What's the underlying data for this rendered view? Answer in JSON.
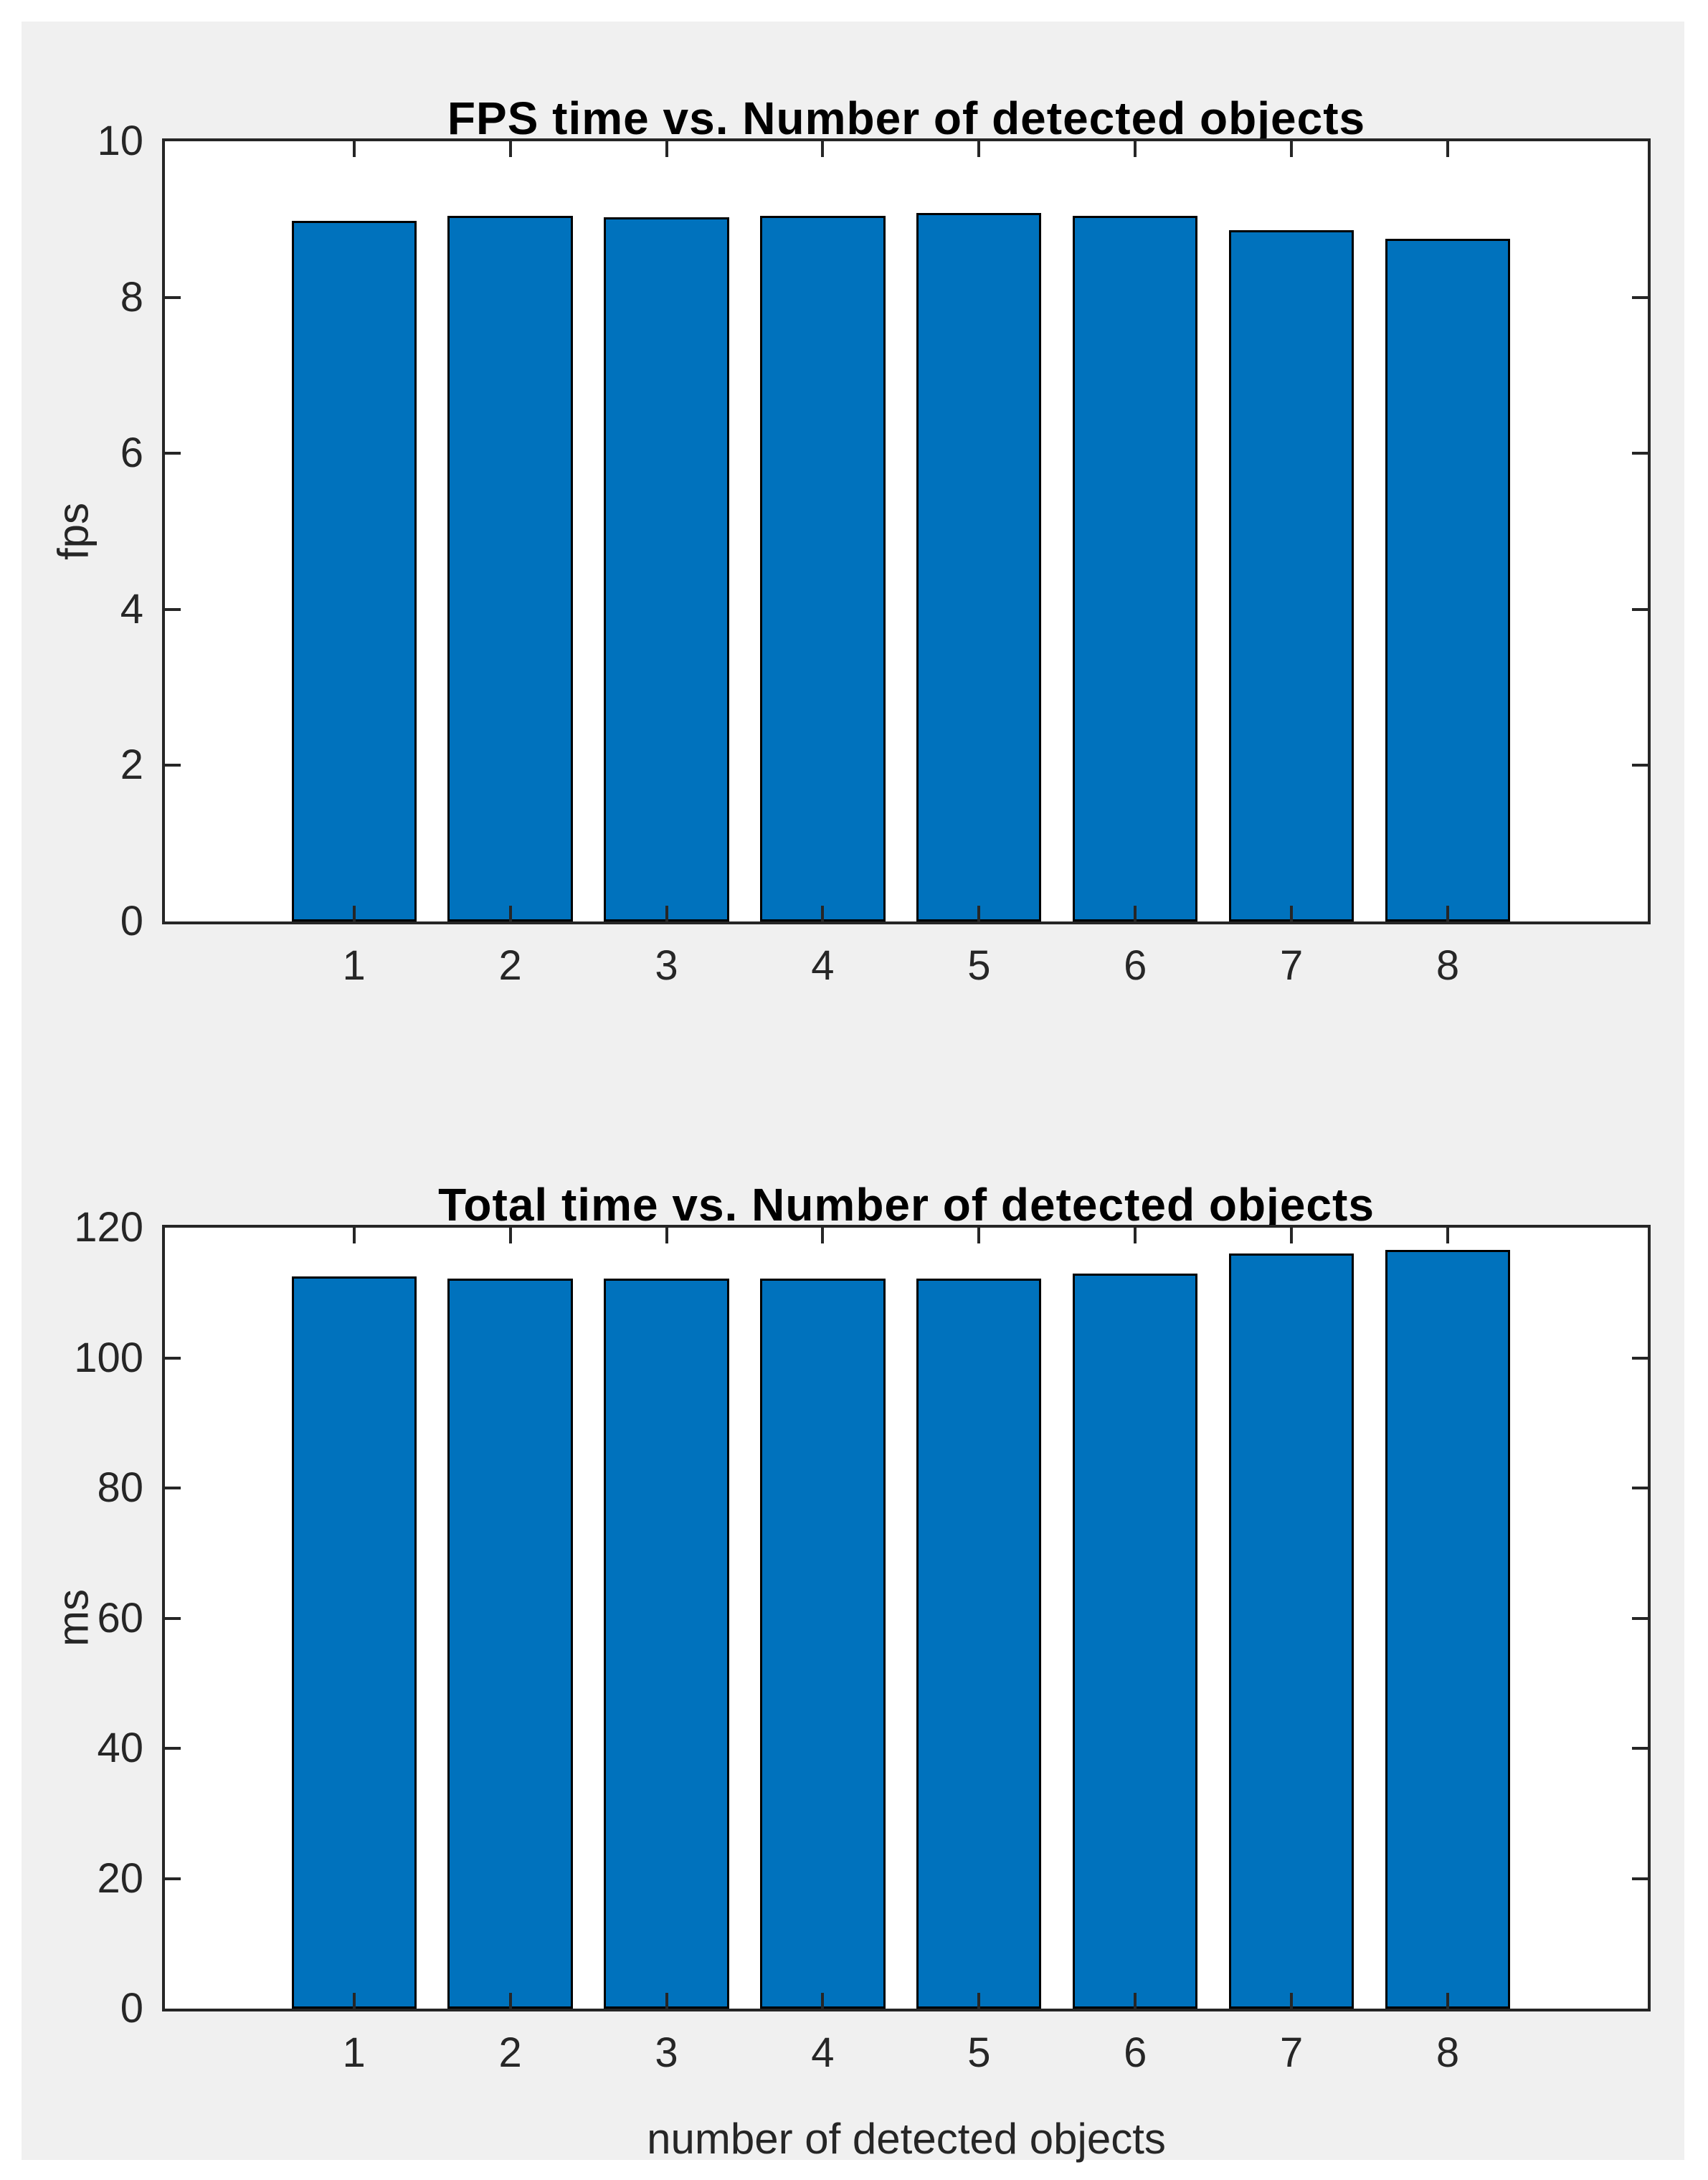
{
  "figure": {
    "background": "#f0f0f0",
    "page_background": "#ffffff"
  },
  "colors": {
    "bar_fill": "#0072bd",
    "bar_edge": "#000000",
    "axis": "#262626",
    "plot_background": "#ffffff",
    "title": "#000000"
  },
  "chart_data": [
    {
      "type": "bar",
      "title": "FPS time vs. Number of detected objects",
      "xlabel": "",
      "ylabel": "fps",
      "categories": [
        1,
        2,
        3,
        4,
        5,
        6,
        7,
        8
      ],
      "xtick_labels": [
        "1",
        "2",
        "3",
        "4",
        "5",
        "6",
        "7",
        "8"
      ],
      "values": [
        8.98,
        9.04,
        9.03,
        9.04,
        9.08,
        9.04,
        8.86,
        8.75
      ],
      "yticks": [
        0,
        2,
        4,
        6,
        8,
        10
      ],
      "ylim": [
        0,
        10
      ],
      "xlim": [
        -0.21,
        9.28
      ],
      "bar_width": 0.8,
      "grid": false,
      "legend_position": "none"
    },
    {
      "type": "bar",
      "title": "Total time vs. Number of detected objects",
      "xlabel": "number of detected objects",
      "ylabel": "ms",
      "categories": [
        1,
        2,
        3,
        4,
        5,
        6,
        7,
        8
      ],
      "xtick_labels": [
        "1",
        "2",
        "3",
        "4",
        "5",
        "6",
        "7",
        "8"
      ],
      "values": [
        112.5,
        112.2,
        112.2,
        112.2,
        112.2,
        113.0,
        116.0,
        116.6
      ],
      "yticks": [
        0,
        20,
        40,
        60,
        80,
        100,
        120
      ],
      "ylim": [
        0,
        120
      ],
      "xlim": [
        -0.21,
        9.28
      ],
      "bar_width": 0.8,
      "grid": false,
      "legend_position": "none"
    }
  ]
}
